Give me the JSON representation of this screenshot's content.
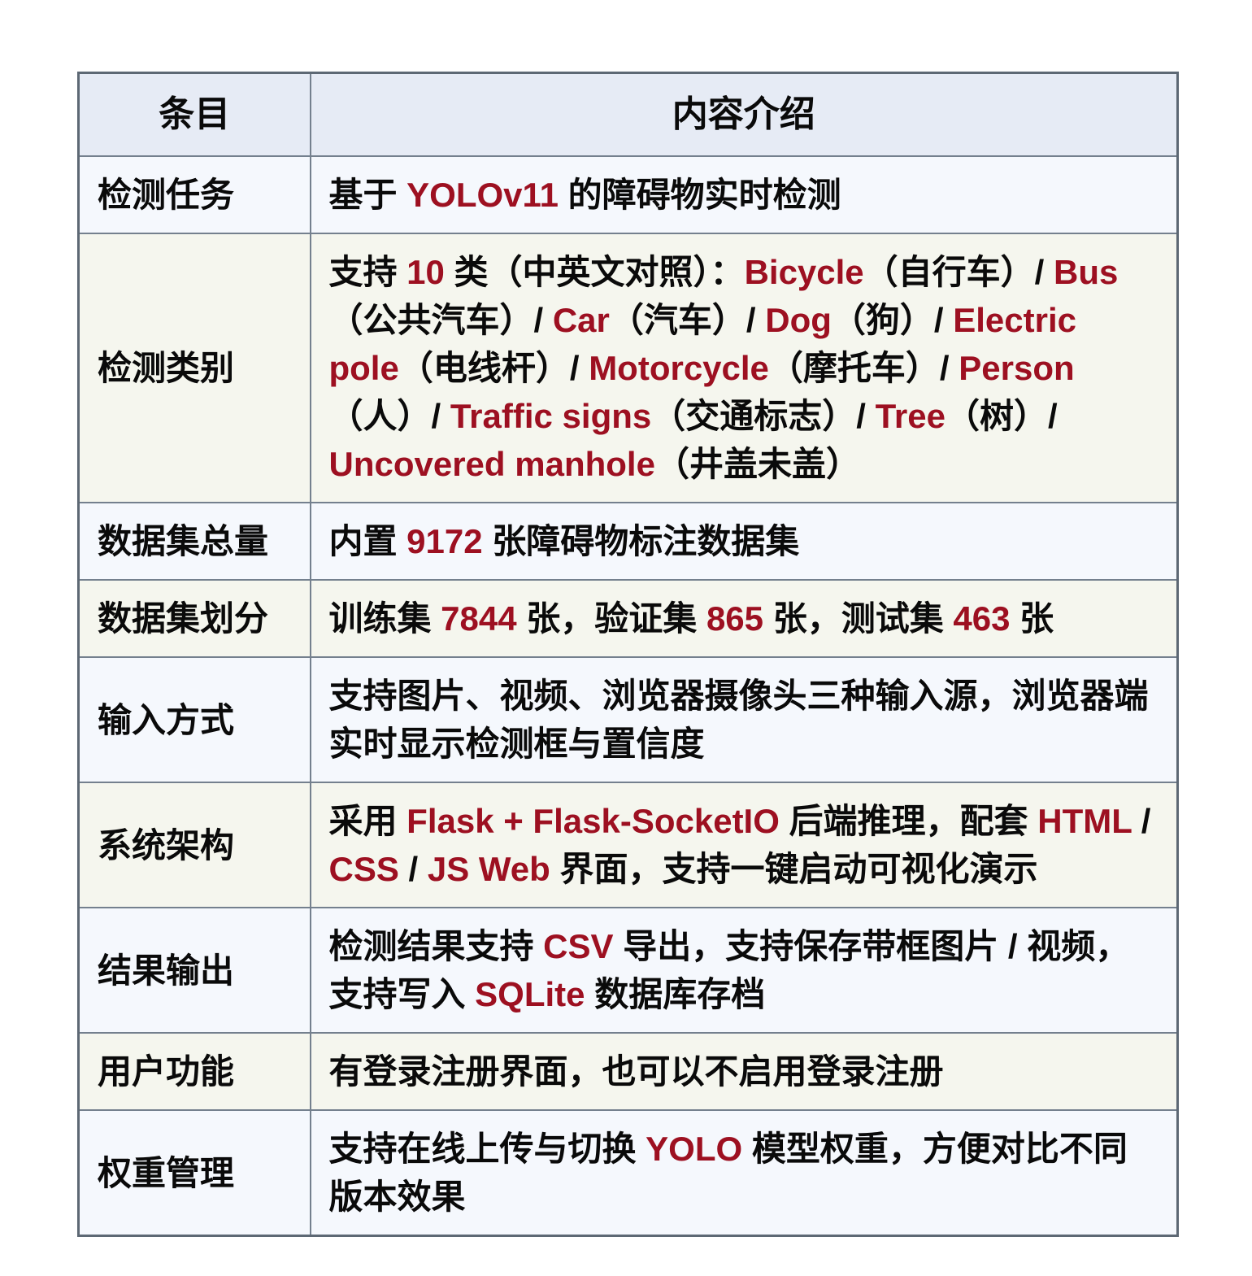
{
  "colors": {
    "highlight": "#9d1021",
    "header_bg": "#e6ebf5",
    "row_blue": "#f5f8fd",
    "row_cream": "#f5f6ee",
    "inner_border": "#74808e",
    "outer_border": "#5d6874"
  },
  "table": {
    "header": {
      "item_col": "条目",
      "content_col": "内容介绍"
    },
    "rows": [
      {
        "label": "检测任务",
        "segments": [
          {
            "t": "基于 "
          },
          {
            "t": "YOLOv11",
            "hl": true
          },
          {
            "t": " 的障碍物实时检测"
          }
        ]
      },
      {
        "label": "检测类别",
        "segments": [
          {
            "t": "支持 "
          },
          {
            "t": "10",
            "hl": true
          },
          {
            "t": " 类（中英文对照）："
          },
          {
            "t": "Bicycle",
            "hl": true
          },
          {
            "t": "（自行车）/ "
          },
          {
            "t": "Bus",
            "hl": true
          },
          {
            "t": "（公共汽车）/ "
          },
          {
            "t": "Car",
            "hl": true
          },
          {
            "t": "（汽车）/ "
          },
          {
            "t": "Dog",
            "hl": true
          },
          {
            "t": "（狗）/ "
          },
          {
            "t": "Electric pole",
            "hl": true
          },
          {
            "t": "（电线杆）/ "
          },
          {
            "t": "Motorcycle",
            "hl": true
          },
          {
            "t": "（摩托车）/ "
          },
          {
            "t": "Person",
            "hl": true
          },
          {
            "t": "（人）/ "
          },
          {
            "t": "Traffic signs",
            "hl": true
          },
          {
            "t": "（交通标志）/ "
          },
          {
            "t": "Tree",
            "hl": true
          },
          {
            "t": "（树）/ "
          },
          {
            "t": "Uncovered manhole",
            "hl": true
          },
          {
            "t": "（井盖未盖）"
          }
        ]
      },
      {
        "label": "数据集总量",
        "segments": [
          {
            "t": "内置 "
          },
          {
            "t": "9172",
            "hl": true
          },
          {
            "t": " 张障碍物标注数据集"
          }
        ]
      },
      {
        "label": "数据集划分",
        "segments": [
          {
            "t": "训练集 "
          },
          {
            "t": "7844",
            "hl": true
          },
          {
            "t": " 张，验证集 "
          },
          {
            "t": "865",
            "hl": true
          },
          {
            "t": " 张，测试集 "
          },
          {
            "t": "463",
            "hl": true
          },
          {
            "t": " 张"
          }
        ]
      },
      {
        "label": "输入方式",
        "segments": [
          {
            "t": "支持图片、视频、浏览器摄像头三种输入源，浏览器端实时显示检测框与置信度"
          }
        ]
      },
      {
        "label": "系统架构",
        "segments": [
          {
            "t": "采用 "
          },
          {
            "t": "Flask + Flask-SocketIO",
            "hl": true
          },
          {
            "t": " 后端推理，配套 "
          },
          {
            "t": "HTML",
            "hl": true
          },
          {
            "t": " / "
          },
          {
            "t": "CSS",
            "hl": true
          },
          {
            "t": " / "
          },
          {
            "t": "JS Web",
            "hl": true
          },
          {
            "t": " 界面，支持一键启动可视化演示"
          }
        ]
      },
      {
        "label": "结果输出",
        "segments": [
          {
            "t": "检测结果支持 "
          },
          {
            "t": "CSV",
            "hl": true
          },
          {
            "t": " 导出，支持保存带框图片 / 视频，支持写入 "
          },
          {
            "t": "SQLite",
            "hl": true
          },
          {
            "t": " 数据库存档"
          }
        ]
      },
      {
        "label": "用户功能",
        "segments": [
          {
            "t": "有登录注册界面，也可以不启用登录注册"
          }
        ]
      },
      {
        "label": "权重管理",
        "segments": [
          {
            "t": "支持在线上传与切换 "
          },
          {
            "t": "YOLO",
            "hl": true
          },
          {
            "t": " 模型权重，方便对比不同版本效果"
          }
        ]
      }
    ]
  }
}
